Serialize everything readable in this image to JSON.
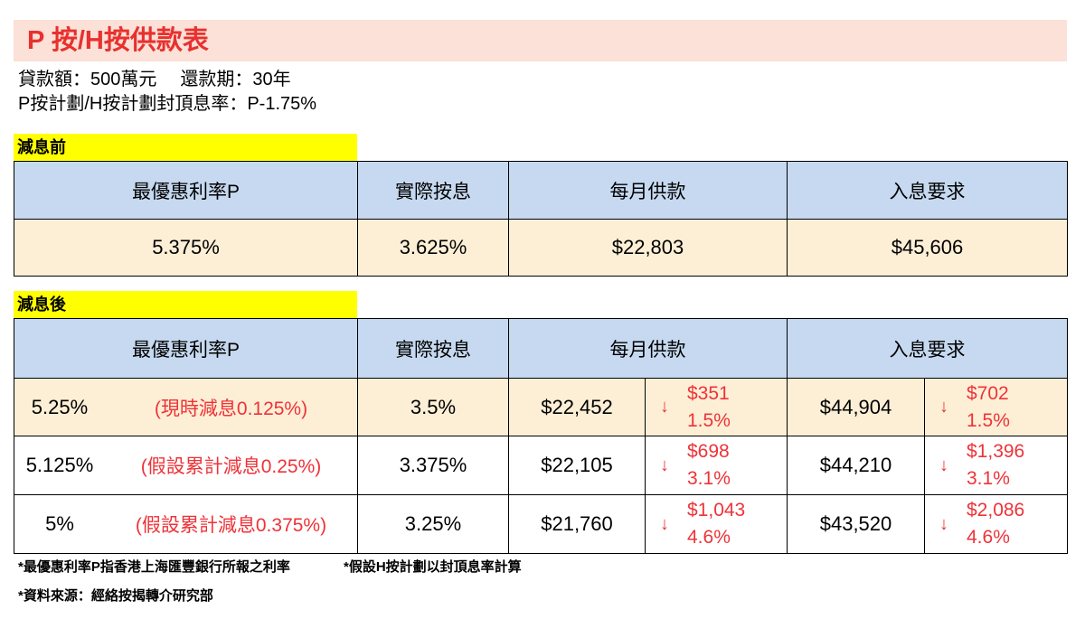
{
  "title": "P 按/H按供款表",
  "info": {
    "loan_amount": "貸款額：500萬元",
    "term": "還款期：30年",
    "cap_rate": "P按計劃/H按計劃封頂息率：P-1.75%"
  },
  "headers": {
    "prime": "最優惠利率P",
    "actual": "實際按息",
    "monthly": "每月供款",
    "income": "入息要求"
  },
  "arrow": "↓",
  "before": {
    "label": "減息前",
    "row": {
      "prime": "5.375%",
      "actual": "3.625%",
      "monthly": "$22,803",
      "income": "$45,606"
    }
  },
  "after": {
    "label": "減息後",
    "rows": [
      {
        "prime": "5.25%",
        "note": "(現時減息0.125%)",
        "actual": "3.5%",
        "monthly": "$22,452",
        "monthly_drop": "$351",
        "monthly_drop_pct": "1.5%",
        "income": "$44,904",
        "income_drop": "$702",
        "income_drop_pct": "1.5%"
      },
      {
        "prime": "5.125%",
        "note": "(假設累計減息0.25%)",
        "actual": "3.375%",
        "monthly": "$22,105",
        "monthly_drop": "$698",
        "monthly_drop_pct": "3.1%",
        "income": "$44,210",
        "income_drop": "$1,396",
        "income_drop_pct": "3.1%"
      },
      {
        "prime": "5%",
        "note": "(假設累計減息0.375%)",
        "actual": "3.25%",
        "monthly": "$21,760",
        "monthly_drop": "$1,043",
        "monthly_drop_pct": "4.6%",
        "income": "$43,520",
        "income_drop": "$2,086",
        "income_drop_pct": "4.6%"
      }
    ]
  },
  "footnotes": {
    "note1": "*最優惠利率P指香港上海匯豐銀行所報之利率",
    "note2": "*假設H按計劃以封頂息率計算",
    "source": "*資料來源：經絡按揭轉介研究部"
  },
  "colors": {
    "title": "#E8312F",
    "title_bg": "#FBE1D7",
    "label_bg": "#FFFF00",
    "header_bg": "#C6D9F0",
    "row_bg": "#FDEFD6",
    "drop": "#EE3338"
  }
}
